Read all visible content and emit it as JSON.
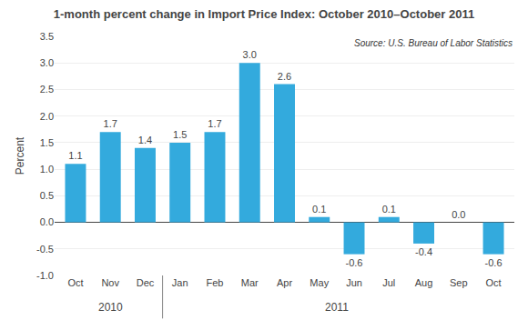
{
  "chart_data": {
    "type": "bar",
    "title": "1-month percent change in Import Price Index: October 2010–October 2011",
    "y_label": "Percent",
    "categories": [
      "Oct",
      "Nov",
      "Dec",
      "Jan",
      "Feb",
      "Mar",
      "Apr",
      "May",
      "Jun",
      "Jul",
      "Aug",
      "Sep",
      "Oct"
    ],
    "values": [
      1.1,
      1.7,
      1.4,
      1.5,
      1.7,
      3.0,
      2.6,
      0.1,
      -0.6,
      0.1,
      -0.4,
      0.0,
      -0.6
    ],
    "value_labels": [
      "1.1",
      "1.7",
      "1.4",
      "1.5",
      "1.7",
      "3.0",
      "2.6",
      "0.1",
      "-0.6",
      "0.1",
      "-0.4",
      "0.0",
      "-0.6"
    ],
    "data_labels": true,
    "color": "#33AADD",
    "ylim": [
      -1.0,
      3.5
    ],
    "yticks": [
      {
        "value": -1.0,
        "label": "-1.0"
      },
      -0.5,
      {
        "value": 0.0,
        "label": "0.0"
      },
      0.5,
      {
        "value": 1.0,
        "label": "1.0"
      },
      1.5,
      {
        "value": 2.0,
        "label": "2.0"
      },
      2.5,
      {
        "value": 3.0,
        "label": "3.0"
      },
      3.5
    ],
    "grid": true,
    "groups": [
      {
        "name": "2010",
        "size": 3
      },
      {
        "name": "2011",
        "size": 10
      }
    ],
    "annotations": [
      "Source: U.S. Bureau of Labor Statistics"
    ]
  }
}
